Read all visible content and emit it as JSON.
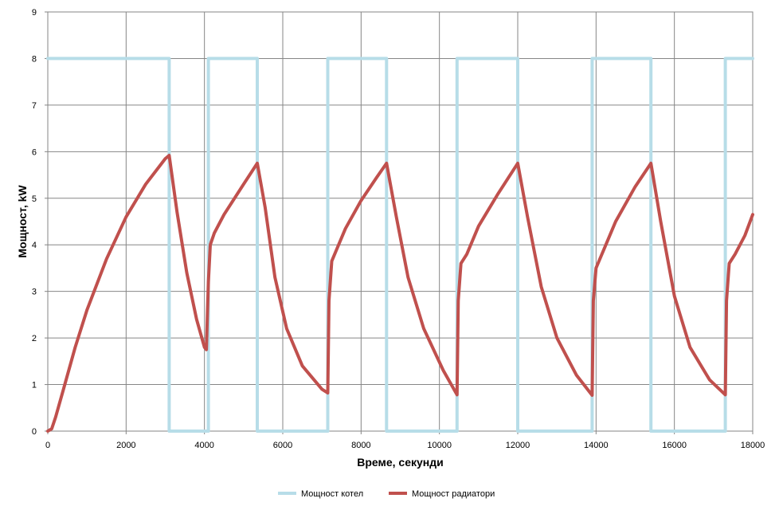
{
  "chart_data": {
    "type": "line",
    "title": "",
    "xlabel": "Време, секунди",
    "ylabel": "Мощност, kW",
    "xlim": [
      0,
      18000
    ],
    "ylim": [
      0,
      9
    ],
    "x_ticks": [
      0,
      2000,
      4000,
      6000,
      8000,
      10000,
      12000,
      14000,
      16000,
      18000
    ],
    "y_ticks": [
      0,
      1,
      2,
      3,
      4,
      5,
      6,
      7,
      8,
      9
    ],
    "grid": true,
    "legend_position": "bottom",
    "series": [
      {
        "name": "Мощност котел",
        "color": "#b7dde8",
        "x": [
          0,
          3100,
          3100,
          4100,
          4100,
          5350,
          5350,
          7150,
          7150,
          8650,
          8650,
          10450,
          10450,
          12000,
          12000,
          13900,
          13900,
          15400,
          15400,
          17300,
          17300,
          18000
        ],
        "y": [
          8,
          8,
          0,
          0,
          8,
          8,
          0,
          0,
          8,
          8,
          0,
          0,
          8,
          8,
          0,
          0,
          8,
          8,
          0,
          0,
          8,
          8
        ]
      },
      {
        "name": "Мощност радиатори",
        "color": "#c0504d",
        "x": [
          0,
          100,
          200,
          400,
          700,
          1000,
          1500,
          2000,
          2500,
          3000,
          3100,
          3300,
          3550,
          3800,
          4000,
          4050,
          4100,
          4150,
          4250,
          4500,
          5000,
          5350,
          5550,
          5800,
          6100,
          6500,
          7000,
          7150,
          7180,
          7250,
          7350,
          7600,
          8000,
          8400,
          8650,
          8900,
          9200,
          9600,
          10100,
          10450,
          10480,
          10550,
          10700,
          11000,
          11500,
          12000,
          12250,
          12600,
          13000,
          13500,
          13900,
          13930,
          14000,
          14150,
          14500,
          15000,
          15400,
          15650,
          16000,
          16400,
          16900,
          17300,
          17330,
          17400,
          17550,
          17800,
          18000
        ],
        "y": [
          0,
          0.05,
          0.3,
          0.9,
          1.8,
          2.6,
          3.7,
          4.6,
          5.3,
          5.85,
          5.92,
          4.7,
          3.4,
          2.4,
          1.8,
          1.75,
          3.2,
          4.0,
          4.25,
          4.65,
          5.3,
          5.75,
          4.8,
          3.3,
          2.2,
          1.4,
          0.9,
          0.82,
          2.8,
          3.65,
          3.85,
          4.35,
          4.95,
          5.45,
          5.75,
          4.6,
          3.3,
          2.2,
          1.3,
          0.78,
          2.8,
          3.6,
          3.8,
          4.4,
          5.1,
          5.75,
          4.6,
          3.1,
          2.0,
          1.2,
          0.77,
          2.8,
          3.5,
          3.8,
          4.5,
          5.25,
          5.75,
          4.5,
          2.9,
          1.8,
          1.1,
          0.78,
          2.8,
          3.6,
          3.8,
          4.2,
          4.65
        ]
      }
    ]
  }
}
